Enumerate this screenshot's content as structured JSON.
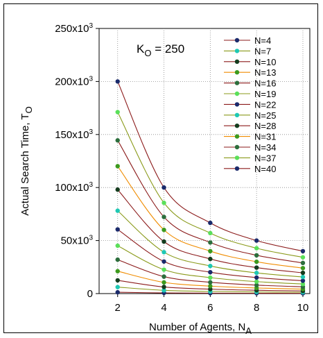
{
  "chart_data": {
    "type": "line",
    "annotation": {
      "base": "K",
      "sub": "O",
      "rest": " = 250"
    },
    "xlabel": {
      "base": "Number of Agents, N",
      "sub": "A"
    },
    "ylabel": {
      "base": "Actual Search Time, T",
      "sub": "O"
    },
    "x": [
      2,
      4,
      6,
      8,
      10
    ],
    "xlim": [
      1.2,
      10.3
    ],
    "ylim": [
      0,
      250000
    ],
    "x_ticks": [
      2,
      4,
      6,
      8,
      10
    ],
    "y_ticks": [
      {
        "value": 0,
        "base": "0",
        "sup": ""
      },
      {
        "value": 50000,
        "base": "50x10",
        "sup": "3"
      },
      {
        "value": 100000,
        "base": "100x10",
        "sup": "3"
      },
      {
        "value": 150000,
        "base": "150x10",
        "sup": "3"
      },
      {
        "value": 200000,
        "base": "200x10",
        "sup": "3"
      },
      {
        "value": 250000,
        "base": "250x10",
        "sup": "3"
      }
    ],
    "grid": true,
    "legend_position": "top-right",
    "series": [
      {
        "name": "N=4",
        "values": [
          1250,
          625,
          417,
          313,
          250
        ],
        "line_color": "#8b1a1a",
        "marker_color": "#1a2a6b"
      },
      {
        "name": "N=7",
        "values": [
          6125,
          3063,
          2042,
          1531,
          1225
        ],
        "line_color": "#8a9a1a",
        "marker_color": "#1ec8b4"
      },
      {
        "name": "N=10",
        "values": [
          12500,
          6250,
          4167,
          3125,
          2500
        ],
        "line_color": "#8b1a1a",
        "marker_color": "#143c1e"
      },
      {
        "name": "N=13",
        "values": [
          21125,
          10563,
          7042,
          5281,
          4225
        ],
        "line_color": "#f08c00",
        "marker_color": "#3c9a1e"
      },
      {
        "name": "N=16",
        "values": [
          32000,
          16000,
          10667,
          8000,
          6400
        ],
        "line_color": "#8b1a1a",
        "marker_color": "#2c6e3c"
      },
      {
        "name": "N=19",
        "values": [
          45125,
          22563,
          15042,
          11281,
          9025
        ],
        "line_color": "#8a9a1a",
        "marker_color": "#5ae05a"
      },
      {
        "name": "N=22",
        "values": [
          60500,
          30250,
          20167,
          15125,
          12100
        ],
        "line_color": "#8b1a1a",
        "marker_color": "#1a2a6b"
      },
      {
        "name": "N=25",
        "values": [
          78125,
          39063,
          26042,
          19531,
          15625
        ],
        "line_color": "#8a9a1a",
        "marker_color": "#1ec8b4"
      },
      {
        "name": "N=28",
        "values": [
          98000,
          49000,
          32667,
          24500,
          19600
        ],
        "line_color": "#8b1a1a",
        "marker_color": "#143c1e"
      },
      {
        "name": "N=31",
        "values": [
          120125,
          60063,
          40042,
          30031,
          24025
        ],
        "line_color": "#f08c00",
        "marker_color": "#3c9a1e"
      },
      {
        "name": "N=34",
        "values": [
          144500,
          72250,
          48167,
          36125,
          28900
        ],
        "line_color": "#8b1a1a",
        "marker_color": "#2c6e3c"
      },
      {
        "name": "N=37",
        "values": [
          171125,
          85563,
          57042,
          42781,
          34225
        ],
        "line_color": "#8a9a1a",
        "marker_color": "#5ae05a"
      },
      {
        "name": "N=40",
        "values": [
          200000,
          100000,
          66667,
          50000,
          40000
        ],
        "line_color": "#8b1a1a",
        "marker_color": "#1a2a6b"
      }
    ]
  }
}
